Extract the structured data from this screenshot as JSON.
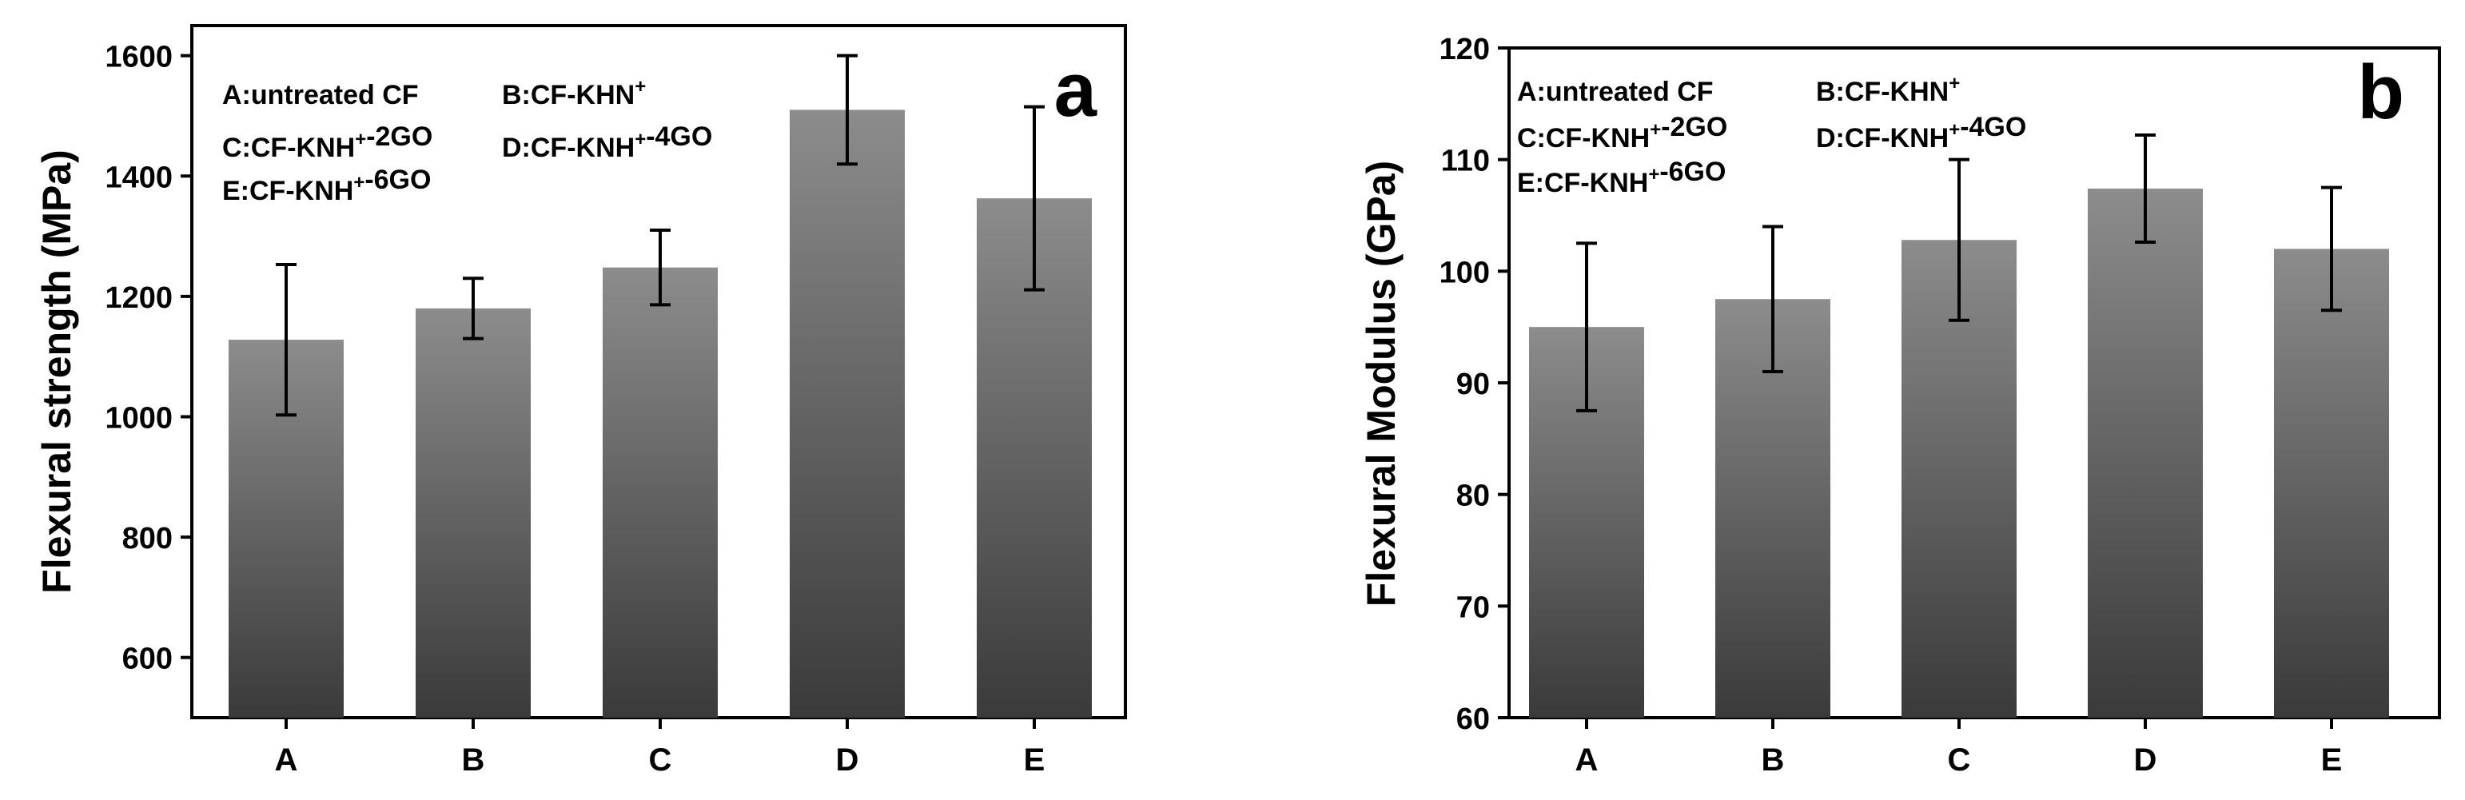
{
  "colors": {
    "bar_top": "#8c8c8c",
    "bar_bottom": "#3a3a3a",
    "axis": "#000000",
    "error": "#000000"
  },
  "chart_data": [
    {
      "type": "bar",
      "panel_label": "a",
      "ylabel": "Flexural strength (MPa)",
      "xlabel": "",
      "categories": [
        "A",
        "B",
        "C",
        "D",
        "E"
      ],
      "values": [
        1128,
        1180,
        1248,
        1510,
        1363
      ],
      "errors": [
        125,
        50,
        62,
        90,
        152
      ],
      "ylim": [
        500,
        1650
      ],
      "yticks": [
        600,
        800,
        1000,
        1200,
        1400,
        1600
      ],
      "legend": [
        [
          {
            "t": "A:untreated CF"
          }
        ],
        [
          {
            "t": "B:CF-KHN"
          },
          {
            "t": "+",
            "sup": true
          }
        ],
        [
          {
            "t": "C:CF-KNH"
          },
          {
            "t": "+",
            "sup": true
          },
          {
            "t": "-2GO"
          }
        ],
        [
          {
            "t": "D:CF-KNH"
          },
          {
            "t": "+",
            "sup": true
          },
          {
            "t": "-4GO"
          }
        ],
        [
          {
            "t": "E:CF-KNH"
          },
          {
            "t": "+",
            "sup": true
          },
          {
            "t": "-6GO"
          }
        ]
      ]
    },
    {
      "type": "bar",
      "panel_label": "b",
      "ylabel": "Flexural Modulus (GPa)",
      "xlabel": "",
      "categories": [
        "A",
        "B",
        "C",
        "D",
        "E"
      ],
      "values": [
        95.0,
        97.5,
        102.8,
        107.4,
        102.0
      ],
      "errors": [
        7.5,
        6.5,
        7.2,
        4.8,
        5.5
      ],
      "ylim": [
        60,
        120
      ],
      "yticks": [
        60,
        70,
        80,
        90,
        100,
        110,
        120
      ],
      "legend": [
        [
          {
            "t": "A:untreated CF"
          }
        ],
        [
          {
            "t": "B:CF-KHN"
          },
          {
            "t": "+",
            "sup": true
          }
        ],
        [
          {
            "t": "C:CF-KNH"
          },
          {
            "t": "+",
            "sup": true
          },
          {
            "t": "-2GO"
          }
        ],
        [
          {
            "t": "D:CF-KNH"
          },
          {
            "t": "+",
            "sup": true
          },
          {
            "t": "-4GO"
          }
        ],
        [
          {
            "t": "E:CF-KNH"
          },
          {
            "t": "+",
            "sup": true
          },
          {
            "t": "-6GO"
          }
        ]
      ]
    }
  ]
}
